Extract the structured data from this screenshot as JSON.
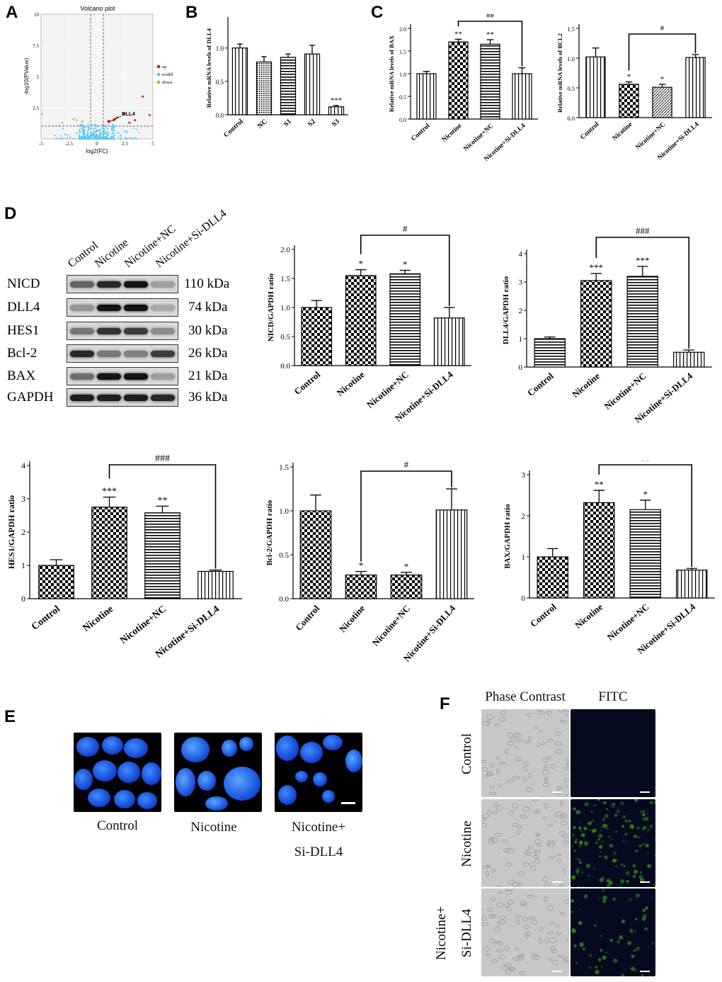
{
  "panel_labels": {
    "a": "A",
    "b": "B",
    "c": "C",
    "d": "D",
    "e": "E",
    "f": "F"
  },
  "volcano": {
    "title": "Volcano plot",
    "xlabel": "log2(FC)",
    "ylabel": "-log10(PValue)",
    "annotation": "DLL4",
    "x_ticks": [
      "-5",
      "-2.5",
      "0",
      "2.5",
      "5"
    ],
    "y_ticks": [
      "10",
      "7.5",
      "5",
      "2.5"
    ],
    "legend": [
      {
        "label": "up",
        "color": "#e41a1c"
      },
      {
        "label": "nodiff",
        "color": "#5bc8f5"
      },
      {
        "label": "down",
        "color": "#e6a020"
      }
    ]
  },
  "chart_data": [
    {
      "id": "B",
      "type": "bar",
      "ylabel": "Relative mRNA levels of DLL4",
      "categories": [
        "Control",
        "NC",
        "S1",
        "S2",
        "S3"
      ],
      "values": [
        1.0,
        0.79,
        0.86,
        0.91,
        0.12
      ],
      "errors": [
        0.06,
        0.08,
        0.05,
        0.13,
        0.02
      ],
      "stars": [
        "",
        "",
        "",
        "",
        "***"
      ],
      "ylim": [
        0,
        1.4
      ],
      "ticks": [
        0.0,
        0.5,
        1.0,
        1.5
      ]
    },
    {
      "id": "C-BAX",
      "type": "bar",
      "ylabel": "Relative mRNA levels of BAX",
      "categories": [
        "Control",
        "Nicotine",
        "Nicotine+NC",
        "Nicotine+Si-DLL4"
      ],
      "values": [
        1.0,
        1.7,
        1.65,
        1.0
      ],
      "errors": [
        0.05,
        0.06,
        0.1,
        0.13
      ],
      "stars": [
        "",
        "**",
        "**",
        ""
      ],
      "bracket": {
        "from": 1,
        "to": 3,
        "label": "##"
      },
      "ylim": [
        0,
        2.0
      ],
      "ticks": [
        0.0,
        0.5,
        1.0,
        1.5,
        2.0
      ]
    },
    {
      "id": "C-BCL2",
      "type": "bar",
      "ylabel": "Relative mRNA levels of BCL2",
      "categories": [
        "Control",
        "Nicotine",
        "Nicotine+NC",
        "Nicotine+Si-DLL4"
      ],
      "values": [
        1.02,
        0.56,
        0.51,
        1.01
      ],
      "errors": [
        0.15,
        0.04,
        0.05,
        0.05
      ],
      "stars": [
        "",
        "*",
        "*",
        ""
      ],
      "bracket": {
        "from": 1,
        "to": 3,
        "label": "#"
      },
      "ylim": [
        0,
        1.5
      ],
      "ticks": [
        0.0,
        0.5,
        1.0,
        1.5
      ]
    },
    {
      "id": "D-NICD",
      "type": "bar",
      "ylabel": "NICD/GAPDH ratio",
      "categories": [
        "Control",
        "Nicotine",
        "Nicotine+NC",
        "Nicotine+Si-DLL4"
      ],
      "values": [
        1.0,
        1.55,
        1.58,
        0.82
      ],
      "errors": [
        0.12,
        0.1,
        0.06,
        0.18
      ],
      "stars": [
        "",
        "*",
        "*",
        ""
      ],
      "bracket": {
        "from": 1,
        "to": 3,
        "label": "#"
      },
      "ylim": [
        0,
        2.0
      ],
      "ticks": [
        0.0,
        0.5,
        1.0,
        1.5,
        2.0
      ]
    },
    {
      "id": "D-DLL4",
      "type": "bar",
      "ylabel": "DLL4/GAPDH ratio",
      "categories": [
        "Control",
        "Nicotine",
        "Nicotine+NC",
        "Nicotine+Si-DLL4"
      ],
      "values": [
        1.0,
        3.05,
        3.2,
        0.52
      ],
      "errors": [
        0.06,
        0.25,
        0.35,
        0.08
      ],
      "stars": [
        "",
        "***",
        "***",
        ""
      ],
      "bracket": {
        "from": 1,
        "to": 3,
        "label": "###"
      },
      "ylim": [
        0,
        4
      ],
      "ticks": [
        0,
        1,
        2,
        3,
        4
      ]
    },
    {
      "id": "D-HES1",
      "type": "bar",
      "ylabel": "HES1/GAPDH ratio",
      "categories": [
        "Control",
        "Nicotine",
        "Nicotine+NC",
        "Nicotine+Si-DLL4"
      ],
      "values": [
        1.0,
        2.75,
        2.58,
        0.82
      ],
      "errors": [
        0.17,
        0.3,
        0.2,
        0.04
      ],
      "stars": [
        "",
        "***",
        "**",
        ""
      ],
      "bracket": {
        "from": 1,
        "to": 3,
        "label": "###"
      },
      "ylim": [
        0,
        4
      ],
      "ticks": [
        0,
        1,
        2,
        3,
        4
      ]
    },
    {
      "id": "D-BCL2",
      "type": "bar",
      "ylabel": "Bcl-2/GAPDH ratio",
      "categories": [
        "Control",
        "Nicotine",
        "Nicotine+NC",
        "Nicotine+Si-DLL4"
      ],
      "values": [
        1.0,
        0.27,
        0.27,
        1.01
      ],
      "errors": [
        0.18,
        0.04,
        0.03,
        0.24
      ],
      "stars": [
        "",
        "*",
        "*",
        ""
      ],
      "bracket": {
        "from": 1,
        "to": 3,
        "label": "#"
      },
      "ylim": [
        0,
        1.5
      ],
      "ticks": [
        0.0,
        0.5,
        1.0,
        1.5
      ]
    },
    {
      "id": "D-BAX",
      "type": "bar",
      "ylabel": "BAX/GAPDH ratio",
      "categories": [
        "Control",
        "Nicotine",
        "Nicotine+NC",
        "Nicotine+Si-DLL4"
      ],
      "values": [
        1.0,
        2.32,
        2.15,
        0.68
      ],
      "errors": [
        0.2,
        0.3,
        0.23,
        0.04
      ],
      "stars": [
        "",
        "**",
        "*",
        ""
      ],
      "bracket": {
        "from": 1,
        "to": 3,
        "label": "##"
      },
      "ylim": [
        0,
        3
      ],
      "ticks": [
        0,
        1,
        2,
        3
      ]
    }
  ],
  "western": {
    "lanes": [
      "Control",
      "Nicotine",
      "Nicotine+NC",
      "Nicotine+Si-DLL4"
    ],
    "bands": [
      {
        "name": "NICD",
        "kda": "110 kDa",
        "intensity": [
          0.55,
          0.85,
          0.95,
          0.25
        ]
      },
      {
        "name": "DLL4",
        "kda": "74 kDa",
        "intensity": [
          0.3,
          0.95,
          0.95,
          0.2
        ]
      },
      {
        "name": "HES1",
        "kda": "30 kDa",
        "intensity": [
          0.45,
          0.8,
          0.75,
          0.35
        ]
      },
      {
        "name": "Bcl-2",
        "kda": "26 kDa",
        "intensity": [
          0.85,
          0.45,
          0.4,
          0.75
        ]
      },
      {
        "name": "BAX",
        "kda": "21 kDa",
        "intensity": [
          0.5,
          0.95,
          0.95,
          0.25
        ]
      },
      {
        "name": "GAPDH",
        "kda": "36 kDa",
        "intensity": [
          0.9,
          0.9,
          0.9,
          0.85
        ]
      }
    ]
  },
  "panel_e": {
    "captions": [
      "Control",
      "Nicotine",
      "Nicotine+",
      "Si-DLL4"
    ]
  },
  "panel_f": {
    "col_headers": [
      "Phase Contrast",
      "FITC"
    ],
    "row_labels": [
      "Control",
      "Nicotine",
      "Nicotine+",
      "Si-DLL4"
    ],
    "fitc_levels": [
      0.0,
      0.75,
      0.3
    ]
  },
  "colors": {
    "bar_stroke": "#000000",
    "nuclei": "#1e6cff",
    "fitc_green": "#3aa018",
    "fitc_bg": "#050a1e"
  }
}
